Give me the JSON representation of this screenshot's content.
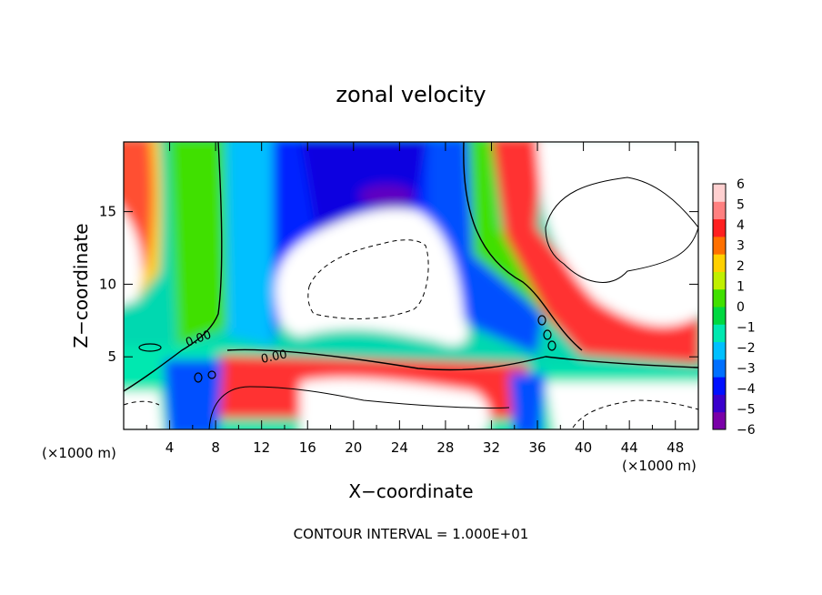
{
  "chart_data": {
    "type": "heatmap",
    "title": "zonal velocity",
    "xlabel": "X−coordinate",
    "ylabel": "Z−coordinate",
    "x_unit_left": "(×1000 m)",
    "x_unit_right": "(×1000 m)",
    "xlim": [
      0,
      50
    ],
    "ylim": [
      0,
      19.8
    ],
    "xticks": [
      4,
      8,
      12,
      16,
      20,
      24,
      28,
      32,
      36,
      40,
      44,
      48
    ],
    "yticks": [
      5,
      10,
      15
    ],
    "colorbar": {
      "min": -6,
      "max": 6,
      "ticks": [
        6,
        5,
        4,
        3,
        2,
        1,
        0,
        -1,
        -2,
        -3,
        -4,
        -5,
        -6
      ],
      "tick_labels": [
        "6",
        "5",
        "4",
        "3",
        "2",
        "1",
        "0",
        "−1",
        "−2",
        "−3",
        "−4",
        "−5",
        "−6"
      ],
      "colors": [
        "#7a00a8",
        "#3a00cc",
        "#0010ff",
        "#0070ff",
        "#00c0ff",
        "#00e8b0",
        "#00d840",
        "#40e000",
        "#c0f000",
        "#ffd000",
        "#ff7000",
        "#ff2020",
        "#ff8080",
        "#ffd0d0"
      ]
    },
    "contour_labels": [
      "0.00",
      "0.00"
    ],
    "annotation": "CONTOUR INTERVAL = 1.000E+01"
  }
}
